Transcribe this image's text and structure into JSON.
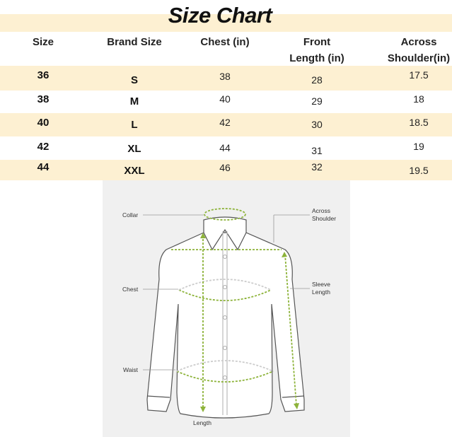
{
  "title": "Size Chart",
  "columns": [
    "Size",
    "Brand Size",
    "Chest (in)",
    "Front Length (in)",
    "Across Shoulder(in)"
  ],
  "column_lines": [
    [
      "Size"
    ],
    [
      "Brand Size"
    ],
    [
      "Chest (in)"
    ],
    [
      "Front",
      "Length (in)"
    ],
    [
      "Across",
      "Shoulder(in)"
    ]
  ],
  "rows": [
    [
      "36",
      "S",
      "38",
      "28",
      "17.5"
    ],
    [
      "38",
      "M",
      "40",
      "29",
      "18"
    ],
    [
      "40",
      "L",
      "42",
      "30",
      "18.5"
    ],
    [
      "42",
      "XL",
      "44",
      "31",
      "19"
    ],
    [
      "44",
      "XXL",
      "46",
      "32",
      "19.5"
    ]
  ],
  "diagram": {
    "labels": {
      "collar": "Collar",
      "chest": "Chest",
      "waist": "Waist",
      "length": "Length",
      "across_shoulder": [
        "Across",
        "Shoulder"
      ],
      "sleeve_length": [
        "Sleeve",
        "Length"
      ]
    },
    "measure_color": "#8db33a"
  },
  "colors": {
    "row_band": "#fdf0d2"
  }
}
